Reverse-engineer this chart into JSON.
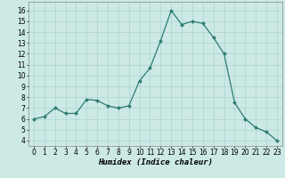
{
  "x": [
    0,
    1,
    2,
    3,
    4,
    5,
    6,
    7,
    8,
    9,
    10,
    11,
    12,
    13,
    14,
    15,
    16,
    17,
    18,
    19,
    20,
    21,
    22,
    23
  ],
  "y": [
    6.0,
    6.2,
    7.0,
    6.5,
    6.5,
    7.8,
    7.7,
    7.2,
    7.0,
    7.2,
    9.5,
    10.7,
    13.2,
    16.0,
    14.7,
    15.0,
    14.8,
    13.5,
    12.0,
    7.5,
    6.0,
    5.2,
    4.8,
    4.0
  ],
  "line_color": "#2d7d6e",
  "marker": "D",
  "marker_size": 2.0,
  "bg_color": "#cce9e5",
  "grid_color": "#b0d8d4",
  "xlabel": "Humidex (Indice chaleur)",
  "ylabel": "",
  "title": "",
  "xlim": [
    -0.5,
    23.5
  ],
  "ylim": [
    3.5,
    16.8
  ],
  "yticks": [
    4,
    5,
    6,
    7,
    8,
    9,
    10,
    11,
    12,
    13,
    14,
    15,
    16
  ],
  "xticks": [
    0,
    1,
    2,
    3,
    4,
    5,
    6,
    7,
    8,
    9,
    10,
    11,
    12,
    13,
    14,
    15,
    16,
    17,
    18,
    19,
    20,
    21,
    22,
    23
  ],
  "tick_fontsize": 5.5,
  "label_fontsize": 6.5,
  "spine_color": "#888888",
  "linewidth": 0.9
}
